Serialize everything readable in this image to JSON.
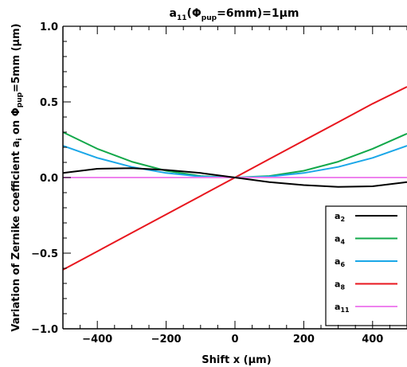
{
  "chart_data": {
    "type": "line",
    "title_main": "a",
    "title_sub": "11",
    "title_paren_open": "(",
    "title_phi": "Φ",
    "title_phi_sub": "pup",
    "title_rest": "=6mm)=1μm",
    "xlabel": "Shift x (μm)",
    "ylabel": "Variation of Zernike coefficient a_i on Φ_pup=5mm (μm)",
    "ylabel_parts": {
      "p1": "Variation of Zernike coefficient a",
      "p1_sub": "i",
      "p2": " on Φ",
      "p2_sub": "pup",
      "p3": "=5mm (μm)"
    },
    "xlim": [
      -500,
      500
    ],
    "ylim": [
      -1.0,
      1.0
    ],
    "x_ticks": [
      {
        "value": -400,
        "label": "−400"
      },
      {
        "value": -200,
        "label": "−200"
      },
      {
        "value": 0,
        "label": "0"
      },
      {
        "value": 200,
        "label": "200"
      },
      {
        "value": 400,
        "label": "400"
      }
    ],
    "y_ticks": [
      {
        "value": 1.0,
        "label": "1.0"
      },
      {
        "value": 0.5,
        "label": "0.5"
      },
      {
        "value": 0.0,
        "label": "0.0"
      },
      {
        "value": -0.5,
        "label": "−0.5"
      },
      {
        "value": -1.0,
        "label": "−1.0"
      }
    ],
    "grid": false,
    "legend_position": "bottom-right",
    "x": [
      -500,
      -400,
      -300,
      -200,
      -100,
      0,
      100,
      200,
      300,
      400,
      500
    ],
    "series": [
      {
        "name": "a",
        "name_sub": "2",
        "color": "#000000",
        "values": [
          0.03,
          0.058,
          0.062,
          0.05,
          0.03,
          0.0,
          -0.03,
          -0.05,
          -0.062,
          -0.058,
          -0.03
        ]
      },
      {
        "name": "a",
        "name_sub": "4",
        "color": "#12a84a",
        "values": [
          0.3,
          0.19,
          0.105,
          0.045,
          0.01,
          0.0,
          0.01,
          0.045,
          0.105,
          0.19,
          0.29
        ]
      },
      {
        "name": "a",
        "name_sub": "6",
        "color": "#1aa7e8",
        "values": [
          0.21,
          0.13,
          0.07,
          0.03,
          0.007,
          0.0,
          0.007,
          0.03,
          0.07,
          0.13,
          0.21
        ]
      },
      {
        "name": "a",
        "name_sub": "8",
        "color": "#e8161e",
        "values": [
          -0.61,
          -0.488,
          -0.366,
          -0.244,
          -0.122,
          0.0,
          0.122,
          0.244,
          0.366,
          0.488,
          0.6
        ]
      },
      {
        "name": "a",
        "name_sub": "11",
        "color": "#ee82ee",
        "values": [
          0,
          0,
          0,
          0,
          0,
          0,
          0,
          0,
          0,
          0,
          0
        ]
      }
    ]
  }
}
